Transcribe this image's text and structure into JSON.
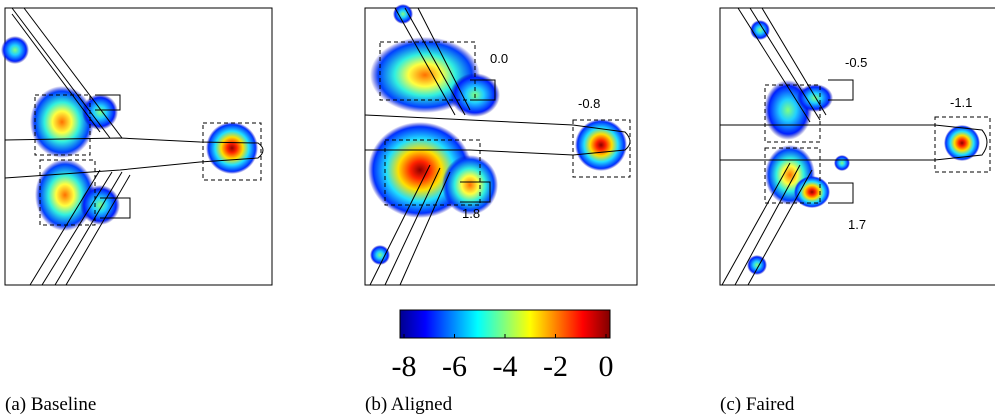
{
  "panels": [
    {
      "caption": "(a) Baseline",
      "annotations": []
    },
    {
      "caption": "(b) Aligned",
      "annotations": [
        "0.0",
        "-0.8",
        "1.8"
      ]
    },
    {
      "caption": "(c) Faired",
      "annotations": [
        "-0.5",
        "-1.1",
        "1.7"
      ]
    }
  ],
  "colorbar": {
    "lim": [
      -8,
      0
    ],
    "ticks": [
      -8,
      -6,
      -4,
      -2,
      0
    ]
  }
}
